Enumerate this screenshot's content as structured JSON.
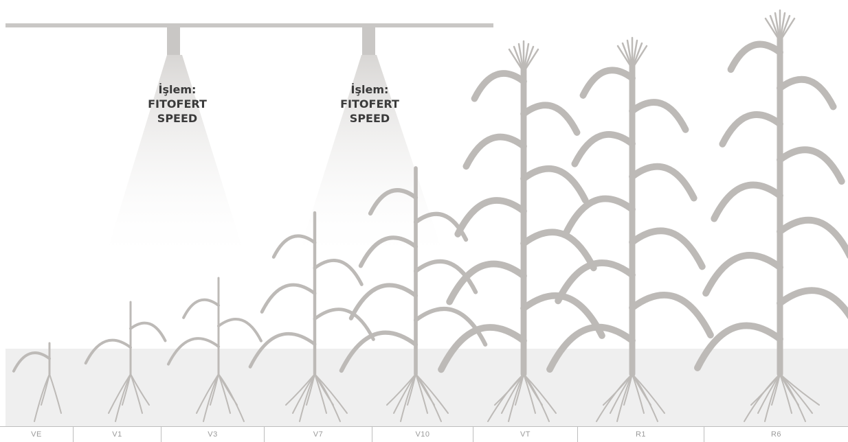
{
  "treatment": {
    "line1": "İşlem:",
    "line2": "FITOFERT",
    "line3": "SPEED"
  },
  "stages": [
    "VE",
    "V1",
    "V3",
    "V7",
    "V10",
    "VT",
    "R1",
    "R6"
  ],
  "colors": {
    "plant": "#bdbab7",
    "boom": "#c9c7c5",
    "ground": "#efefef",
    "text": "#3a3a3a",
    "stage_text": "#9a9a9a"
  }
}
